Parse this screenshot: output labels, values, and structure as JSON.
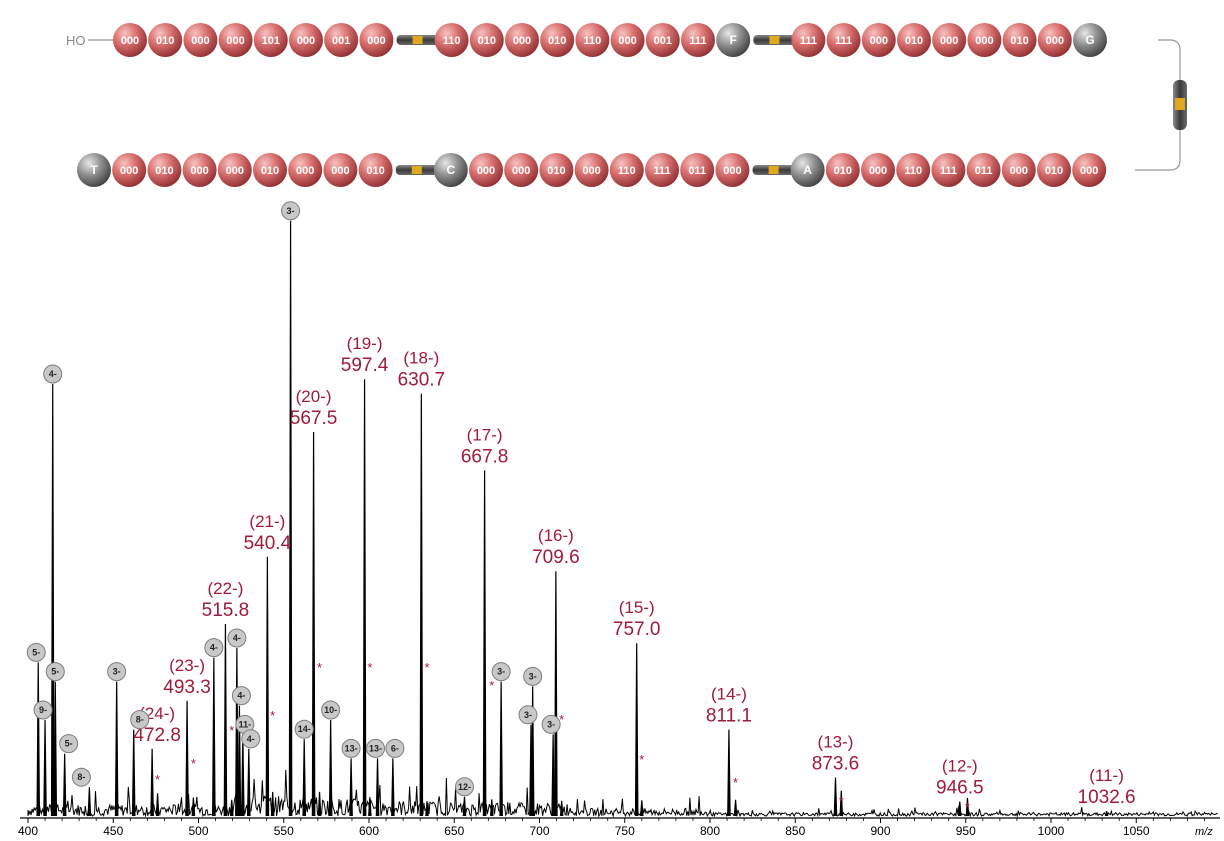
{
  "colors": {
    "bead": "#d9706f",
    "bead_dark": "#9e3b3d",
    "monomer": "#7a7a7a",
    "label": "#a01b3a",
    "spectrum": "#000000",
    "badge_fill": "#c8c8c8",
    "linker": "#555555",
    "linker_mark": "#e0a81c"
  },
  "polymer": {
    "start_label": "HO",
    "row1": [
      "000",
      "010",
      "000",
      "000",
      "101",
      "000",
      "001",
      "000",
      "|",
      "110",
      "010",
      "000",
      "010",
      "110",
      "000",
      "001",
      "111",
      "F",
      "|",
      "111",
      "111",
      "000",
      "010",
      "000",
      "000",
      "010",
      "000",
      "G"
    ],
    "row2": [
      "T",
      "000",
      "010",
      "000",
      "000",
      "010",
      "000",
      "000",
      "010",
      "|",
      "C",
      "000",
      "000",
      "010",
      "000",
      "110",
      "111",
      "011",
      "000",
      "|",
      "A",
      "010",
      "000",
      "110",
      "111",
      "011",
      "000",
      "010",
      "000"
    ]
  },
  "chart_data": {
    "type": "mass_spectrum",
    "xlabel": "m/z",
    "xlim": [
      400,
      1100
    ],
    "x_ticks": [
      400,
      450,
      500,
      550,
      600,
      650,
      700,
      750,
      800,
      850,
      900,
      950,
      1000,
      1050
    ],
    "ylim": [
      0,
      100
    ],
    "grid": false,
    "labeled_peaks": [
      {
        "charge": "(24-)",
        "mz": "472.8",
        "x": 472.8,
        "intensity": 14
      },
      {
        "charge": "(23-)",
        "mz": "493.3",
        "x": 493.3,
        "intensity": 24
      },
      {
        "charge": "(22-)",
        "mz": "515.8",
        "x": 515.8,
        "intensity": 40
      },
      {
        "charge": "(21-)",
        "mz": "540.4",
        "x": 540.4,
        "intensity": 54
      },
      {
        "charge": "(20-)",
        "mz": "567.5",
        "x": 567.5,
        "intensity": 80
      },
      {
        "charge": "(19-)",
        "mz": "597.4",
        "x": 597.4,
        "intensity": 91
      },
      {
        "charge": "(18-)",
        "mz": "630.7",
        "x": 630.7,
        "intensity": 88
      },
      {
        "charge": "(17-)",
        "mz": "667.8",
        "x": 667.8,
        "intensity": 72
      },
      {
        "charge": "(16-)",
        "mz": "709.6",
        "x": 709.6,
        "intensity": 51
      },
      {
        "charge": "(15-)",
        "mz": "757.0",
        "x": 757.0,
        "intensity": 36
      },
      {
        "charge": "(14-)",
        "mz": "811.1",
        "x": 811.1,
        "intensity": 18
      },
      {
        "charge": "(13-)",
        "mz": "873.6",
        "x": 873.6,
        "intensity": 8
      },
      {
        "charge": "(12-)",
        "mz": "946.5",
        "x": 946.5,
        "intensity": 3
      },
      {
        "charge": "(11-)",
        "mz": "1032.6",
        "x": 1032.6,
        "intensity": 1
      }
    ],
    "impurity_peaks": [
      {
        "charge": "3-",
        "x": 554.0,
        "intensity": 124
      },
      {
        "charge": "4-",
        "x": 414.5,
        "intensity": 90
      },
      {
        "charge": "5-",
        "x": 406.0,
        "intensity": 32
      },
      {
        "charge": "5-",
        "x": 416.0,
        "intensity": 28
      },
      {
        "charge": "9-",
        "x": 410.0,
        "intensity": 20
      },
      {
        "charge": "5-",
        "x": 421.5,
        "intensity": 13
      },
      {
        "charge": "8-",
        "x": 436.0,
        "intensity": 6
      },
      {
        "charge": "3-",
        "x": 452.0,
        "intensity": 28
      },
      {
        "charge": "8-",
        "x": 462.0,
        "intensity": 18
      },
      {
        "charge": "4-",
        "x": 509.0,
        "intensity": 33
      },
      {
        "charge": "4-",
        "x": 522.5,
        "intensity": 35
      },
      {
        "charge": "4-",
        "x": 524.0,
        "intensity": 23
      },
      {
        "charge": "11-",
        "x": 526.0,
        "intensity": 17
      },
      {
        "charge": "4-",
        "x": 529.5,
        "intensity": 14
      },
      {
        "charge": "14-",
        "x": 562.0,
        "intensity": 16
      },
      {
        "charge": "10-",
        "x": 577.5,
        "intensity": 20
      },
      {
        "charge": "13-",
        "x": 589.5,
        "intensity": 12
      },
      {
        "charge": "13-",
        "x": 605.0,
        "intensity": 12
      },
      {
        "charge": "6-",
        "x": 614.0,
        "intensity": 12
      },
      {
        "charge": "12-",
        "x": 656.0,
        "intensity": 4
      },
      {
        "charge": "3-",
        "x": 677.5,
        "intensity": 28
      },
      {
        "charge": "3-",
        "x": 696.0,
        "intensity": 27
      },
      {
        "charge": "3-",
        "x": 695.0,
        "intensity": 19
      },
      {
        "charge": "3-",
        "x": 708.0,
        "intensity": 17
      }
    ],
    "asterisk_peaks": [
      476.0,
      497.0,
      519.5,
      543.5,
      571.0,
      600.5,
      634.0,
      672.0,
      713.0,
      760.0,
      815.0,
      877.0,
      951.0
    ]
  }
}
